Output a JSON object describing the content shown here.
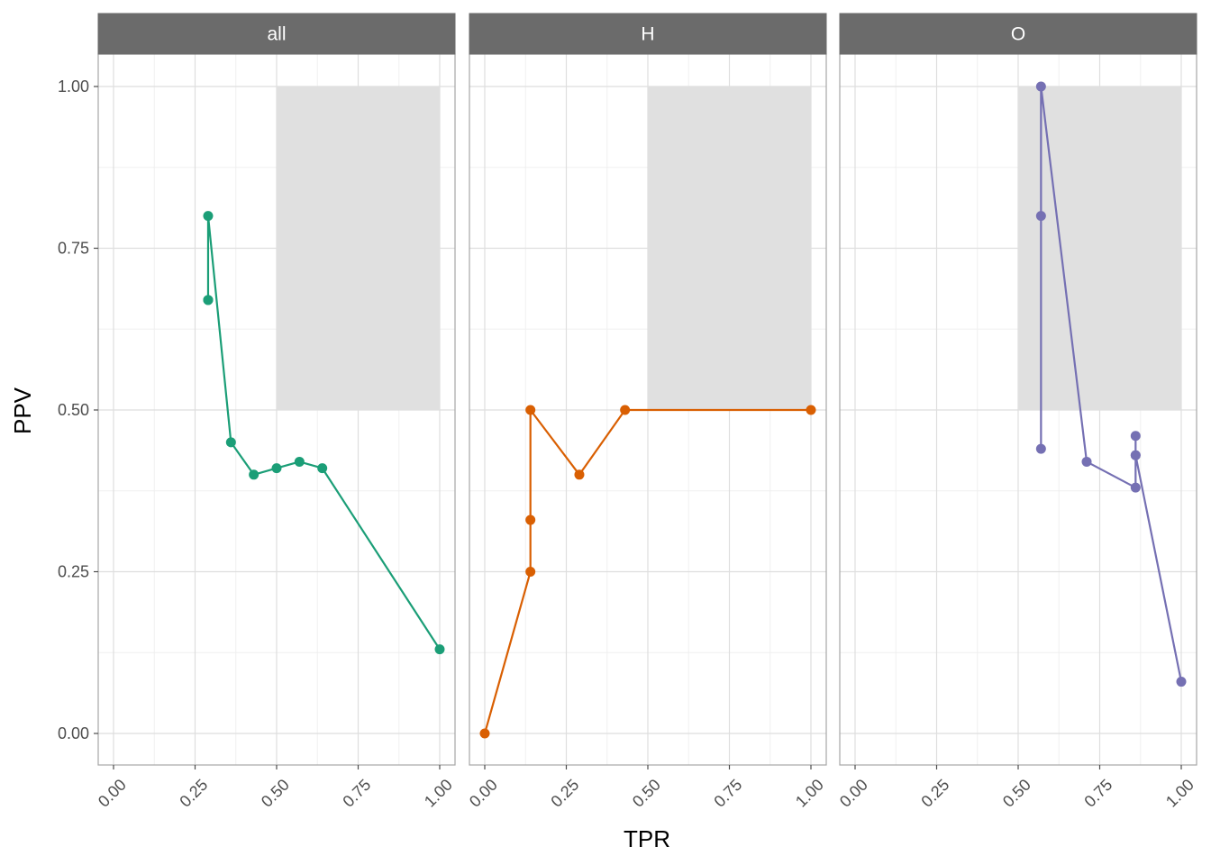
{
  "chart_data": {
    "type": "line",
    "xlabel": "TPR",
    "ylabel": "PPV",
    "xlim": [
      0,
      1
    ],
    "ylim": [
      0,
      1
    ],
    "x_ticks": [
      "0.00",
      "0.25",
      "0.50",
      "0.75",
      "1.00"
    ],
    "y_ticks": [
      "0.00",
      "0.25",
      "0.50",
      "0.75",
      "1.00"
    ],
    "grid": true,
    "shaded_region": {
      "x": [
        0.5,
        1.0
      ],
      "y": [
        0.5,
        1.0
      ],
      "color": "#e0e0e0"
    },
    "panels": [
      {
        "label": "all",
        "color": "#1b9e77",
        "points": [
          {
            "x": 0.29,
            "y": 0.67
          },
          {
            "x": 0.29,
            "y": 0.67
          },
          {
            "x": 0.29,
            "y": 0.8
          },
          {
            "x": 0.36,
            "y": 0.45
          },
          {
            "x": 0.43,
            "y": 0.4
          },
          {
            "x": 0.5,
            "y": 0.41
          },
          {
            "x": 0.57,
            "y": 0.42
          },
          {
            "x": 0.64,
            "y": 0.41
          },
          {
            "x": 1.0,
            "y": 0.13
          }
        ]
      },
      {
        "label": "H",
        "color": "#d95f02",
        "points": [
          {
            "x": 0.0,
            "y": 0.0
          },
          {
            "x": 0.14,
            "y": 0.25
          },
          {
            "x": 0.14,
            "y": 0.33
          },
          {
            "x": 0.14,
            "y": 0.5
          },
          {
            "x": 0.29,
            "y": 0.4
          },
          {
            "x": 0.43,
            "y": 0.5
          },
          {
            "x": 1.0,
            "y": 0.5
          }
        ]
      },
      {
        "label": "O",
        "color": "#7570b3",
        "points": [
          {
            "x": 0.57,
            "y": 0.44
          },
          {
            "x": 0.57,
            "y": 0.8
          },
          {
            "x": 0.57,
            "y": 1.0
          },
          {
            "x": 0.71,
            "y": 0.42
          },
          {
            "x": 0.86,
            "y": 0.38
          },
          {
            "x": 0.86,
            "y": 0.43
          },
          {
            "x": 0.86,
            "y": 0.46
          },
          {
            "x": 0.86,
            "y": 0.43
          },
          {
            "x": 1.0,
            "y": 0.08
          }
        ]
      }
    ]
  }
}
